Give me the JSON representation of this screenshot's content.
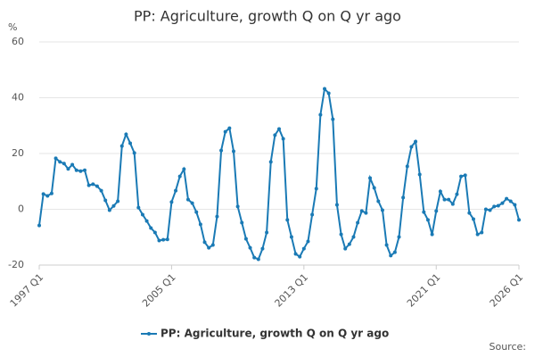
{
  "chart_data": {
    "type": "line",
    "title": "PP: Agriculture, growth Q on Q yr ago",
    "y_label": "%",
    "source": "Source:",
    "categories": [
      "1997 Q1",
      null,
      null,
      null,
      null,
      null,
      null,
      null,
      null,
      null,
      null,
      null,
      null,
      null,
      null,
      null,
      null,
      null,
      null,
      null,
      null,
      null,
      null,
      null,
      null,
      null,
      null,
      null,
      null,
      null,
      null,
      null,
      "2005 Q1",
      null,
      null,
      null,
      null,
      null,
      null,
      null,
      null,
      null,
      null,
      null,
      null,
      null,
      null,
      null,
      null,
      null,
      null,
      null,
      null,
      null,
      null,
      null,
      null,
      null,
      null,
      null,
      null,
      null,
      null,
      null,
      "2013 Q1",
      null,
      null,
      null,
      null,
      null,
      null,
      null,
      null,
      null,
      null,
      null,
      null,
      null,
      null,
      null,
      null,
      null,
      null,
      null,
      null,
      null,
      null,
      null,
      null,
      null,
      null,
      null,
      null,
      null,
      null,
      null,
      "2021 Q1",
      null,
      null,
      null,
      null,
      null,
      null,
      null,
      null,
      null,
      null,
      null,
      null,
      null,
      null,
      null,
      null,
      null,
      null,
      null,
      "2026 Q1"
    ],
    "series": [
      {
        "name": "PP: Agriculture, growth Q on Q yr ago",
        "color": "#1a7ab5",
        "values": [
          -5.8,
          5.5,
          4.8,
          5.7,
          18.3,
          17,
          16.4,
          14.5,
          16,
          14,
          13.7,
          14,
          8.6,
          9,
          8.3,
          6.7,
          3.2,
          -0.3,
          1.2,
          2.9,
          22.7,
          26.9,
          23.7,
          20.2,
          0.6,
          -1.9,
          -4.2,
          -6.7,
          -8.3,
          -11.2,
          -10.9,
          -10.8,
          2.6,
          6.7,
          11.8,
          14.4,
          3.5,
          2.2,
          -1,
          -5.4,
          -11.8,
          -13.8,
          -12.8,
          -2.6,
          21.1,
          27.8,
          29.1,
          20.8,
          1,
          -4.8,
          -10.6,
          -13.8,
          -17.3,
          -17.9,
          -14.1,
          -8.3,
          17,
          26.6,
          28.8,
          25.3,
          -3.8,
          -9.9,
          -16,
          -17,
          -14.1,
          -11.5,
          -1.9,
          7.4,
          33.9,
          43.2,
          41.6,
          32.3,
          1.6,
          -9,
          -14.1,
          -12.5,
          -9.9,
          -4.8,
          -0.6,
          -1.3,
          11.2,
          7.7,
          2.9,
          -0.3,
          -12.8,
          -16.6,
          -15.4,
          -9.9,
          4.2,
          15.4,
          22.4,
          24.3,
          12.5,
          -1,
          -3.8,
          -9,
          -0.6,
          6.4,
          3.5,
          3.5,
          1.9,
          5.4,
          11.8,
          12.2,
          -1.3,
          -3.5,
          -9,
          -8.3,
          0,
          -0.3,
          1,
          1.3,
          2.2,
          3.8,
          2.9,
          1.6,
          -3.8
        ]
      }
    ],
    "ylim": [
      -20,
      60
    ],
    "yticks": [
      -20,
      0,
      20,
      40,
      60
    ],
    "grid": true,
    "legend": "bottom"
  }
}
